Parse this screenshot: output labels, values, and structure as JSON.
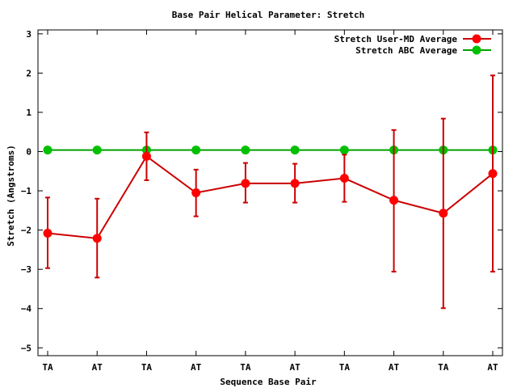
{
  "chart_data": {
    "type": "line",
    "title": "Base Pair Helical Parameter: Stretch",
    "xlabel": "Sequence Base Pair",
    "ylabel": "Stretch (Angstroms)",
    "categories": [
      "TA",
      "AT",
      "TA",
      "AT",
      "TA",
      "AT",
      "TA",
      "AT",
      "TA",
      "AT"
    ],
    "ylim": [
      -5.2,
      3.1
    ],
    "yticks": [
      3,
      2,
      1,
      0,
      -1,
      -2,
      -3,
      -4,
      -5
    ],
    "grid": false,
    "legend_position": "top-right",
    "series": [
      {
        "name": "Stretch User-MD Average",
        "color": "#ff0000",
        "line_color": "#cc0000",
        "values": [
          -2.08,
          -2.21,
          -0.12,
          -1.05,
          -0.81,
          -0.81,
          -0.68,
          -1.24,
          -1.57,
          -0.56
        ],
        "err_low": [
          -2.97,
          -3.21,
          -0.73,
          -1.65,
          -1.3,
          -1.3,
          -1.28,
          -3.06,
          -3.99,
          -3.06
        ],
        "err_high": [
          -1.17,
          -1.2,
          0.49,
          -0.46,
          -0.29,
          -0.31,
          -0.08,
          0.55,
          0.84,
          1.94
        ]
      },
      {
        "name": "Stretch ABC Average",
        "color": "#00c000",
        "line_color": "#00a000",
        "values": [
          0.04,
          0.04,
          0.04,
          0.04,
          0.04,
          0.04,
          0.04,
          0.04,
          0.04,
          0.04
        ]
      }
    ]
  }
}
